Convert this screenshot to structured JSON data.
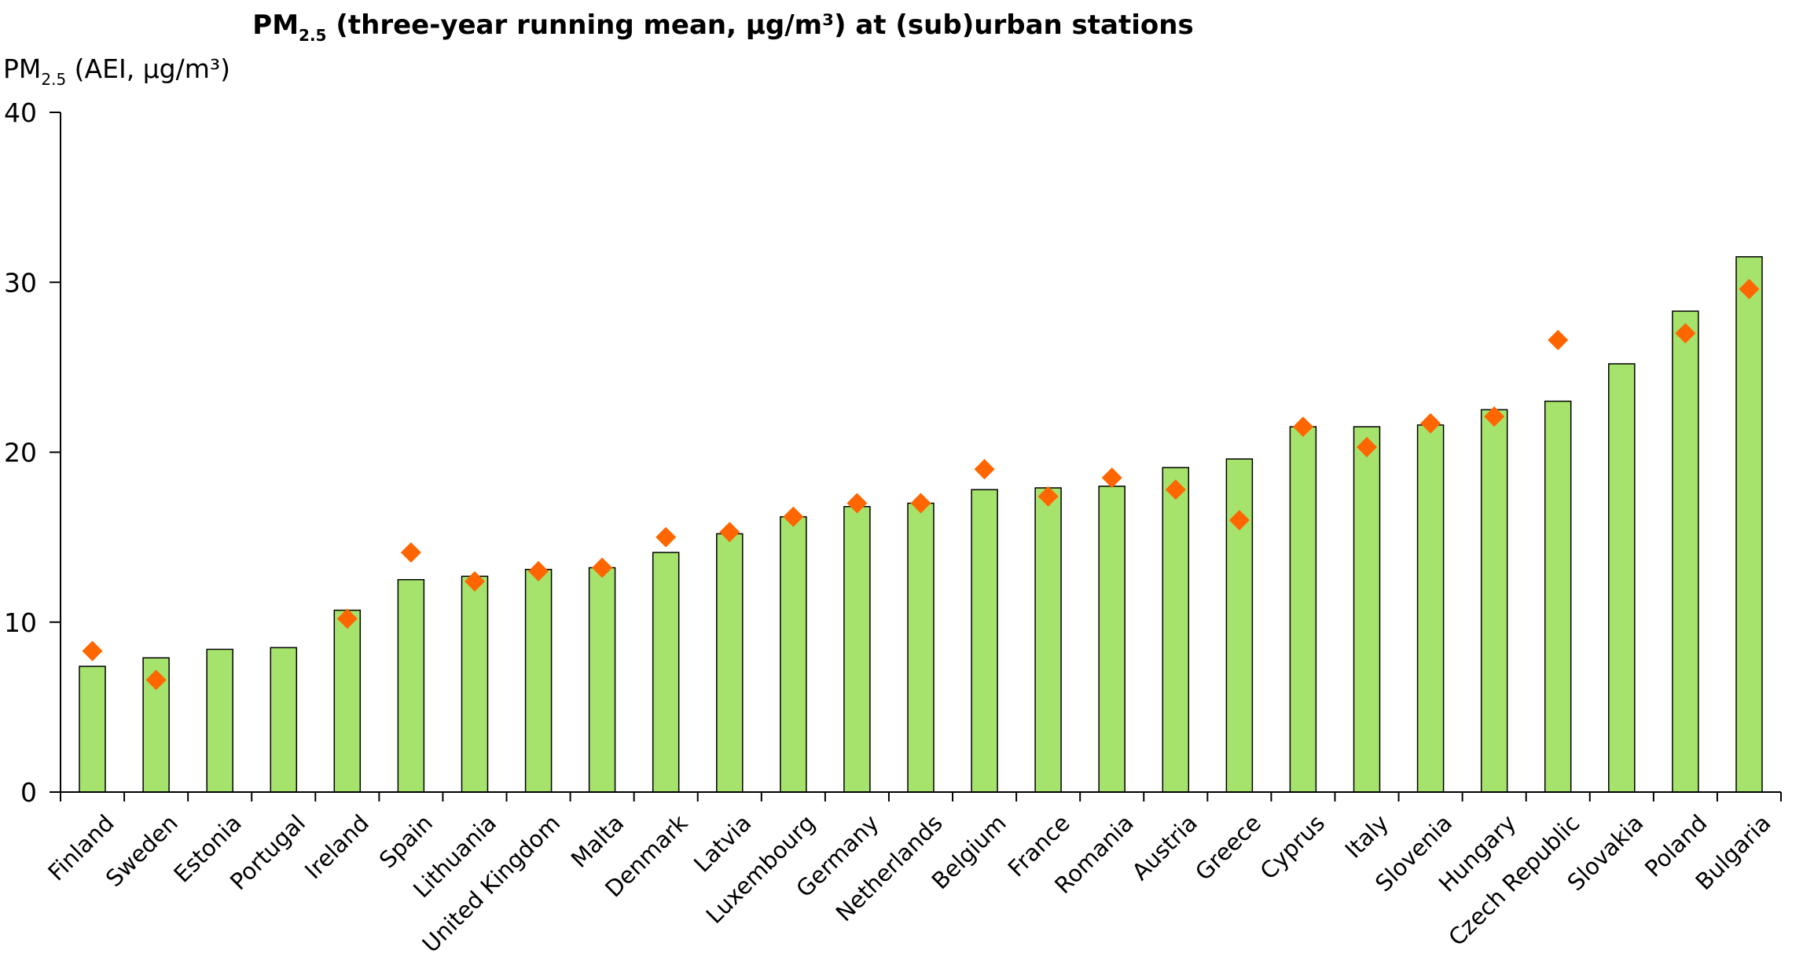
{
  "chart_data": {
    "type": "bar",
    "title_prefix": "PM",
    "title_sub": "2.5",
    "title_rest": " (three-year running mean, µg/m³) at (sub)urban stations",
    "ylabel_prefix": "PM",
    "ylabel_sub": "2.5",
    "ylabel_rest": " (AEI, µg/m³)",
    "ylim": [
      0,
      40
    ],
    "yticks": [
      0,
      10,
      20,
      30,
      40
    ],
    "grid": false,
    "bar_color": "#a6e36d",
    "bar_edge_color": "#000000",
    "marker_color": "#ff6600",
    "marker_shape": "diamond",
    "categories": [
      "Finland",
      "Sweden",
      "Estonia",
      "Portugal",
      "Ireland",
      "Spain",
      "Lithuania",
      "United Kingdom",
      "Malta",
      "Denmark",
      "Latvia",
      "Luxembourg",
      "Germany",
      "Netherlands",
      "Belgium",
      "France",
      "Romania",
      "Austria",
      "Greece",
      "Cyprus",
      "Italy",
      "Slovenia",
      "Hungary",
      "Czech Republic",
      "Slovakia",
      "Poland",
      "Bulgaria"
    ],
    "series": [
      {
        "kind": "bar",
        "values": [
          7.4,
          7.9,
          8.4,
          8.5,
          10.7,
          12.5,
          12.7,
          13.1,
          13.2,
          14.1,
          15.2,
          16.2,
          16.8,
          17.0,
          17.8,
          17.9,
          18.0,
          19.1,
          19.6,
          21.5,
          21.5,
          21.6,
          22.5,
          23.0,
          25.2,
          28.3,
          31.5
        ]
      },
      {
        "kind": "marker",
        "values": [
          8.3,
          6.6,
          null,
          null,
          10.2,
          14.1,
          12.4,
          13.0,
          13.2,
          15.0,
          15.3,
          16.2,
          17.0,
          17.0,
          19.0,
          17.4,
          18.5,
          17.8,
          16.0,
          21.5,
          20.3,
          21.7,
          22.1,
          26.6,
          null,
          27.0,
          29.6
        ]
      }
    ]
  }
}
